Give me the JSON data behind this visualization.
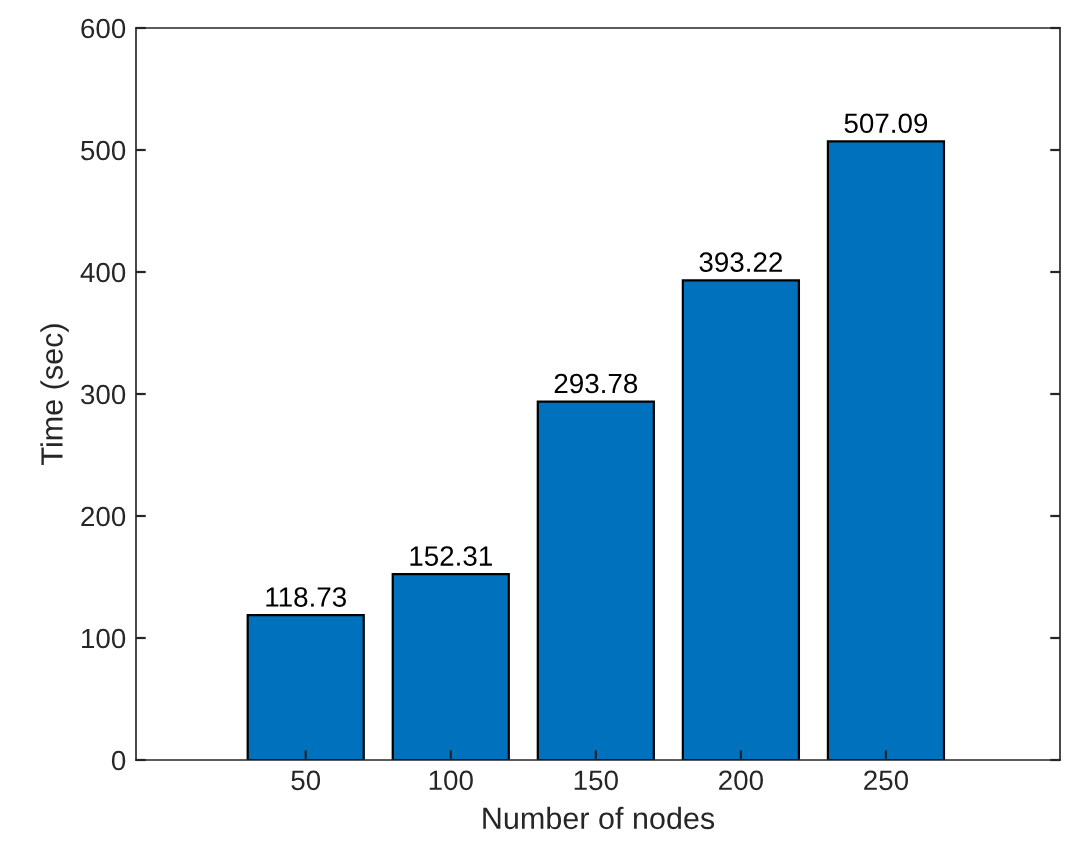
{
  "chart_data": {
    "type": "bar",
    "xlabel": "Number of nodes",
    "ylabel": "Time (sec)",
    "categories": [
      "50",
      "100",
      "150",
      "200",
      "250"
    ],
    "values": [
      118.73,
      152.31,
      293.78,
      393.22,
      507.09
    ],
    "color": "#0072bd",
    "ylim": [
      0,
      600
    ],
    "yticks": [
      0,
      100,
      200,
      300,
      400,
      500,
      600
    ],
    "data_labels": true,
    "grid": false,
    "legend": false
  }
}
